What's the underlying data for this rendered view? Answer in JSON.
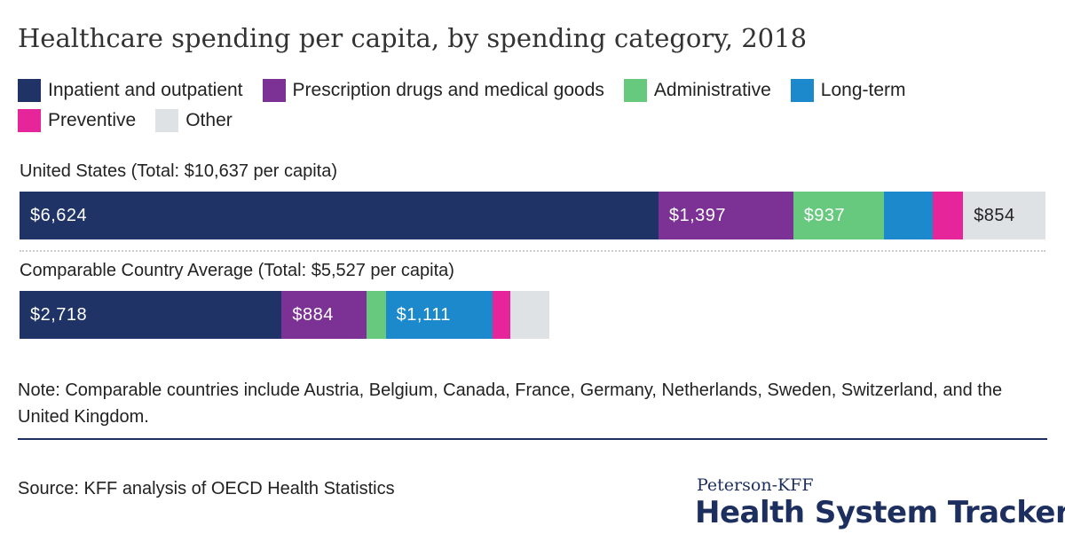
{
  "title": "Healthcare spending per capita, by spending category, 2018",
  "legend": [
    {
      "label": "Inpatient and outpatient",
      "color": "#1f3366"
    },
    {
      "label": "Prescription drugs and medical goods",
      "color": "#7b3294"
    },
    {
      "label": "Administrative",
      "color": "#66c97e"
    },
    {
      "label": "Long-term",
      "color": "#1b89cc"
    },
    {
      "label": "Preventive",
      "color": "#e6259a"
    },
    {
      "label": "Other",
      "color": "#dfe2e5"
    }
  ],
  "chart_data": {
    "type": "bar",
    "orientation": "horizontal",
    "stacked": true,
    "categories": [
      "United States (Total: $10,637 per capita)",
      "Comparable Country Average (Total: $5,527 per capita)"
    ],
    "series": [
      {
        "name": "Inpatient and outpatient",
        "values": [
          6624,
          2718
        ],
        "labels": [
          "$6,624",
          "$2,718"
        ]
      },
      {
        "name": "Prescription drugs and medical goods",
        "values": [
          1397,
          884
        ],
        "labels": [
          "$1,397",
          "$884"
        ]
      },
      {
        "name": "Administrative",
        "values": [
          937,
          195
        ],
        "labels": [
          "$937",
          ""
        ]
      },
      {
        "name": "Long-term",
        "values": [
          510,
          1111
        ],
        "labels": [
          "",
          "$1,111"
        ]
      },
      {
        "name": "Preventive",
        "values": [
          315,
          180
        ],
        "labels": [
          "",
          ""
        ]
      },
      {
        "name": "Other",
        "values": [
          854,
          410
        ],
        "labels": [
          "$854",
          ""
        ]
      }
    ],
    "totals": [
      10637,
      5527
    ],
    "xlim": [
      0,
      10637
    ],
    "title": "Healthcare spending per capita, by spending category, 2018",
    "xlabel": "",
    "ylabel": ""
  },
  "note": "Note: Comparable countries include Austria, Belgium, Canada, France, Germany, Netherlands, Sweden, Switzerland, and the United Kingdom.",
  "source": "Source: KFF analysis of OECD Health Statistics",
  "branding": {
    "top": "Peterson-KFF",
    "main": "Health System Tracker"
  }
}
